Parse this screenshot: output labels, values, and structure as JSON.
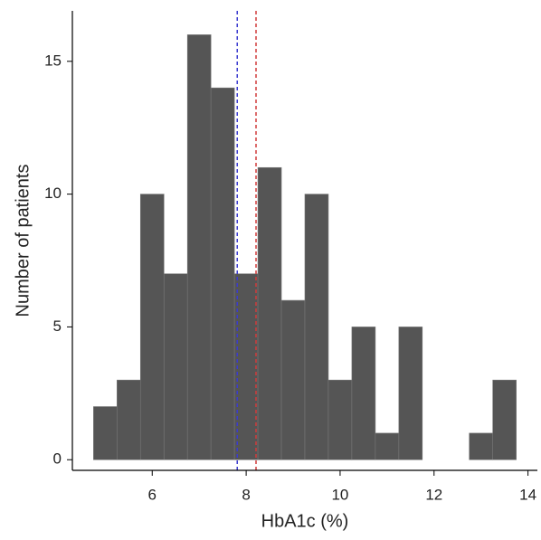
{
  "chart_data": {
    "type": "histogram",
    "xlabel": "HbA1c (%)",
    "ylabel": "Number of patients",
    "bins": [
      4.75,
      5.25,
      5.75,
      6.25,
      6.75,
      7.25,
      7.75,
      8.25,
      8.75,
      9.25,
      9.75,
      10.25,
      10.75,
      11.25,
      11.75,
      12.25,
      12.75,
      13.25,
      13.75
    ],
    "values": [
      2,
      3,
      10,
      7,
      16,
      14,
      7,
      11,
      6,
      10,
      3,
      5,
      1,
      5,
      0,
      0,
      1,
      3
    ],
    "color": "#555555",
    "reference_lines": [
      {
        "x": 7.81,
        "color": "#3b3bd0"
      },
      {
        "x": 8.21,
        "color": "#d03b3b"
      }
    ],
    "xlim": [
      4.3,
      14.2
    ],
    "xticks": [
      6,
      8,
      10,
      12,
      14
    ],
    "ylim": [
      -0.4,
      16.9
    ],
    "yticks": [
      0,
      5,
      10,
      15
    ]
  }
}
